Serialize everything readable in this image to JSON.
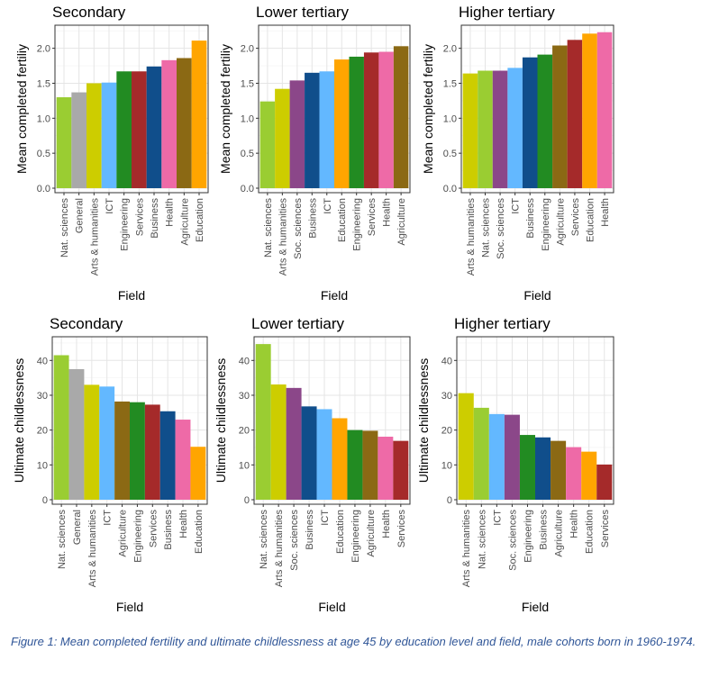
{
  "caption": "Figure 1: Mean completed fertility and ultimate childlessness at age 45 by education level and field, male cohorts born in 1960-1974.",
  "field_colors": {
    "Nat. sciences": "#9acd32",
    "General": "#a9a9a9",
    "Arts & humanities": "#cdcd00",
    "ICT": "#63b8ff",
    "Engineering": "#228b22",
    "Services": "#a52a2a",
    "Business": "#104e8b",
    "Health": "#ee6aa7",
    "Agriculture": "#8b6914",
    "Education": "#ffa500",
    "Soc. sciences": "#8b4789"
  },
  "chart_data": [
    {
      "type": "bar",
      "title": "Secondary",
      "xlabel": "Field",
      "ylabel": "Mean completed fertiliy",
      "ylim": [
        0,
        2.33
      ],
      "yticks": [
        0.0,
        0.5,
        1.0,
        1.5,
        2.0
      ],
      "ytick_labels": [
        "0.0",
        "0.5",
        "1.0",
        "1.5",
        "2.0"
      ],
      "grid": true,
      "categories": [
        "Nat. sciences",
        "General",
        "Arts & humanities",
        "ICT",
        "Engineering",
        "Services",
        "Business",
        "Health",
        "Agriculture",
        "Education"
      ],
      "values": [
        1.3,
        1.37,
        1.5,
        1.51,
        1.67,
        1.67,
        1.74,
        1.83,
        1.86,
        2.11
      ]
    },
    {
      "type": "bar",
      "title": "Lower tertiary",
      "xlabel": "Field",
      "ylabel": "Mean completed fertiliy",
      "ylim": [
        0,
        2.33
      ],
      "yticks": [
        0.0,
        0.5,
        1.0,
        1.5,
        2.0
      ],
      "ytick_labels": [
        "0.0",
        "0.5",
        "1.0",
        "1.5",
        "2.0"
      ],
      "grid": true,
      "categories": [
        "Nat. sciences",
        "Arts & humanities",
        "Soc. sciences",
        "Business",
        "ICT",
        "Education",
        "Engineering",
        "Services",
        "Health",
        "Agriculture"
      ],
      "values": [
        1.24,
        1.42,
        1.54,
        1.65,
        1.67,
        1.84,
        1.88,
        1.94,
        1.95,
        2.03
      ]
    },
    {
      "type": "bar",
      "title": "Higher tertiary",
      "xlabel": "Field",
      "ylabel": "Mean completed fertiliy",
      "ylim": [
        0,
        2.33
      ],
      "yticks": [
        0.0,
        0.5,
        1.0,
        1.5,
        2.0
      ],
      "ytick_labels": [
        "0.0",
        "0.5",
        "1.0",
        "1.5",
        "2.0"
      ],
      "grid": true,
      "categories": [
        "Arts & humanities",
        "Nat. sciences",
        "Soc. sciences",
        "ICT",
        "Business",
        "Engineering",
        "Agriculture",
        "Services",
        "Education",
        "Health"
      ],
      "values": [
        1.64,
        1.68,
        1.68,
        1.72,
        1.87,
        1.91,
        2.04,
        2.12,
        2.21,
        2.23
      ]
    },
    {
      "type": "bar",
      "title": "Secondary",
      "xlabel": "Field",
      "ylabel": "Ultimate childlessness",
      "ylim": [
        0,
        46.8
      ],
      "yticks": [
        0,
        10,
        20,
        30,
        40
      ],
      "ytick_labels": [
        "0",
        "10",
        "20",
        "30",
        "40"
      ],
      "grid": true,
      "categories": [
        "Nat. sciences",
        "General",
        "Arts & humanities",
        "ICT",
        "Agriculture",
        "Engineering",
        "Services",
        "Business",
        "Health",
        "Education"
      ],
      "values": [
        41.5,
        37.5,
        33.0,
        32.5,
        28.2,
        28.0,
        27.3,
        25.4,
        23.0,
        15.2
      ]
    },
    {
      "type": "bar",
      "title": "Lower tertiary",
      "xlabel": "Field",
      "ylabel": "Ultimate childlessness",
      "ylim": [
        0,
        46.8
      ],
      "yticks": [
        0,
        10,
        20,
        30,
        40
      ],
      "ytick_labels": [
        "0",
        "10",
        "20",
        "30",
        "40"
      ],
      "grid": true,
      "categories": [
        "Nat. sciences",
        "Arts & humanities",
        "Soc. sciences",
        "Business",
        "ICT",
        "Education",
        "Engineering",
        "Agriculture",
        "Health",
        "Services"
      ],
      "values": [
        44.7,
        33.1,
        32.1,
        26.8,
        26.0,
        23.4,
        20.0,
        19.8,
        18.1,
        16.9
      ]
    },
    {
      "type": "bar",
      "title": "Higher tertiary",
      "xlabel": "Field",
      "ylabel": "Ultimate childlessness",
      "ylim": [
        0,
        46.8
      ],
      "yticks": [
        0,
        10,
        20,
        30,
        40
      ],
      "ytick_labels": [
        "0",
        "10",
        "20",
        "30",
        "40"
      ],
      "grid": true,
      "categories": [
        "Arts & humanities",
        "Nat. sciences",
        "ICT",
        "Soc. sciences",
        "Engineering",
        "Business",
        "Agriculture",
        "Health",
        "Education",
        "Services"
      ],
      "values": [
        30.6,
        26.4,
        24.6,
        24.4,
        18.6,
        17.9,
        16.9,
        15.1,
        13.8,
        10.1
      ]
    }
  ]
}
